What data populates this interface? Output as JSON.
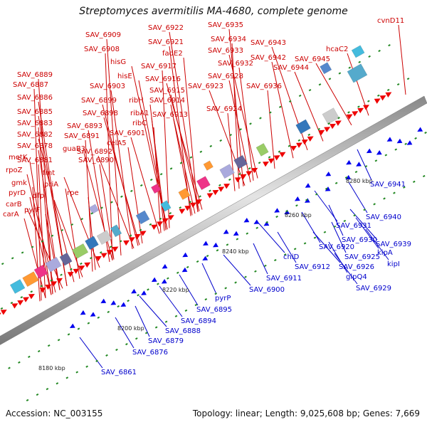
{
  "title": "Streptomyces avermitilis MA-4680, complete genome",
  "footer": {
    "accession": "Accession: NC_003155",
    "summary": "Topology: linear; Length: 9,025,608 bp; Genes: 7,669"
  },
  "colors": {
    "red_label": "#cc0000",
    "blue_label": "#0000cc",
    "forward_gene": "#ee0000",
    "reverse_gene": "#0000ee",
    "backbone": "#aaaaaa",
    "tick": "#228822"
  },
  "scale_labels": [
    "8180 kbp",
    "8200 kbp",
    "8220 kbp",
    "8240 kbp",
    "8260 kbp",
    "8280 kbp"
  ],
  "top_genes": [
    "cvnD11",
    "SAV_6935",
    "hcaC2",
    "SAV_6922",
    "SAV_6943",
    "SAV_6934",
    "SAV_6909",
    "SAV_6921",
    "SAV_6933",
    "SAV_6945",
    "SAV_6908",
    "fadE2",
    "SAV_6942",
    "SAV_6944",
    "hisG",
    "SAV_6917",
    "SAV_6932",
    "SAV_6928",
    "hisE",
    "SAV_6916",
    "SAV_6936",
    "SAV_6889",
    "SAV_6903",
    "SAV_6915",
    "SAV_6923",
    "SAV_6887",
    "ribH",
    "SAV_6914",
    "SAV_6886",
    "SAV_6899",
    "SAV_6924",
    "ribA1",
    "SAV_6913",
    "SAV_6885",
    "SAV_6898",
    "ribC",
    "SAV_6883",
    "SAV_6893",
    "SAV_6901",
    "SAV_6882",
    "SAV_6891",
    "celA5",
    "SAV_6878",
    "guaB3",
    "SAV_6892",
    "SAV_6881",
    "SAV_6890",
    "metK",
    "rpoZ",
    "fmt",
    "gmk",
    "priA",
    "pyrD",
    "dfp",
    "carB",
    "rpe",
    "pyrF",
    "carA"
  ],
  "bottom_genes": [
    "SAV_6941",
    "SAV_6940",
    "SAV_6931",
    "SAV_6939",
    "SAV_6930",
    "SAV_6920",
    "kipA",
    "chiD",
    "SAV_6925",
    "SAV_6912",
    "kipI",
    "SAV_6926",
    "SAV_6911",
    "glpQ4",
    "SAV_6929",
    "SAV_6900",
    "pyrP",
    "SAV_6895",
    "SAV_6894",
    "SAV_6888",
    "SAV_6879",
    "SAV_6876",
    "SAV_6861"
  ]
}
